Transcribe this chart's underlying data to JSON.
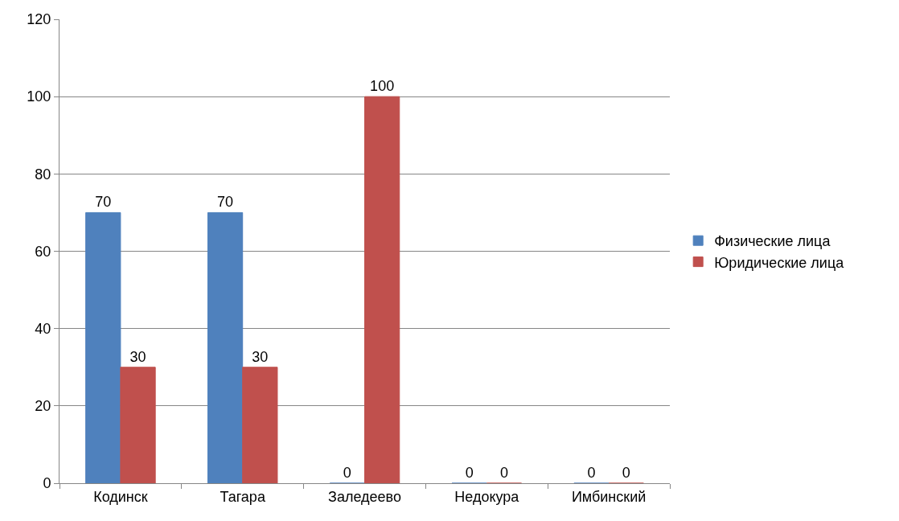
{
  "chart_data": {
    "type": "bar",
    "categories": [
      "Кодинск",
      "Тагара",
      "Заледеево",
      "Недокура",
      "Имбинский"
    ],
    "series": [
      {
        "name": "Физические лица",
        "color": "#4f81bd",
        "values": [
          70,
          70,
          0,
          0,
          0
        ]
      },
      {
        "name": "Юридические лица",
        "color": "#c0504d",
        "values": [
          30,
          30,
          100,
          0,
          0
        ]
      }
    ],
    "ylim": [
      0,
      120
    ],
    "yticks": [
      0,
      20,
      40,
      60,
      80,
      100,
      120
    ],
    "grid": "y",
    "legend": "right",
    "data_labels": true
  }
}
